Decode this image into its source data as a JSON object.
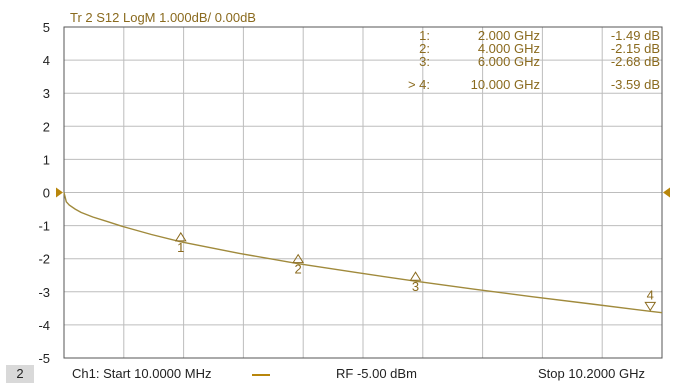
{
  "chart_data": {
    "type": "line",
    "title": "Tr 2  S12 LogM 1.000dB/  0.00dB",
    "xlabel": "",
    "ylabel": "",
    "x_range_ghz": [
      0.01,
      10.2
    ],
    "ylim": [
      -5,
      5
    ],
    "grid": true,
    "y_ticks": [
      "5",
      "4",
      "3",
      "2",
      "1",
      "0",
      "-1",
      "-2",
      "-3",
      "-4",
      "-5"
    ],
    "series": [
      {
        "points": [
          {
            "x": 0.01,
            "y": 0.0
          },
          {
            "x": 0.05,
            "y": -0.28
          },
          {
            "x": 0.1,
            "y": -0.38
          },
          {
            "x": 0.2,
            "y": -0.5
          },
          {
            "x": 0.3,
            "y": -0.6
          },
          {
            "x": 0.5,
            "y": -0.74
          },
          {
            "x": 0.75,
            "y": -0.88
          },
          {
            "x": 1.0,
            "y": -1.02
          },
          {
            "x": 1.5,
            "y": -1.27
          },
          {
            "x": 2.0,
            "y": -1.49
          },
          {
            "x": 3.0,
            "y": -1.84
          },
          {
            "x": 4.0,
            "y": -2.15
          },
          {
            "x": 5.0,
            "y": -2.42
          },
          {
            "x": 6.0,
            "y": -2.68
          },
          {
            "x": 7.0,
            "y": -2.92
          },
          {
            "x": 8.0,
            "y": -3.15
          },
          {
            "x": 9.0,
            "y": -3.37
          },
          {
            "x": 10.0,
            "y": -3.59
          },
          {
            "x": 10.2,
            "y": -3.63
          }
        ]
      }
    ],
    "markers": [
      {
        "num": "1",
        "label": "1:",
        "freq": "2.000  GHz",
        "value": "-1.49 dB",
        "x": 2.0,
        "y": -1.49,
        "active": false
      },
      {
        "num": "2",
        "label": "2:",
        "freq": "4.000  GHz",
        "value": "-2.15 dB",
        "x": 4.0,
        "y": -2.15,
        "active": false
      },
      {
        "num": "3",
        "label": "3:",
        "freq": "6.000  GHz",
        "value": "-2.68 dB",
        "x": 6.0,
        "y": -2.68,
        "active": false
      },
      {
        "num": "4",
        "label": "> 4:",
        "freq": "10.000  GHz",
        "value": "-3.59 dB",
        "x": 10.0,
        "y": -3.59,
        "active": true
      }
    ]
  },
  "colors": {
    "trace": "#a08a3c",
    "marker": "#8a6a1e",
    "grid": "#bdbdbd",
    "frame": "#555555"
  },
  "status_bar": {
    "channel_number": "2",
    "start": "Ch1:  Start  10.0000 MHz",
    "power": "RF  -5.00 dBm",
    "stop": "Stop  10.2000 GHz"
  }
}
